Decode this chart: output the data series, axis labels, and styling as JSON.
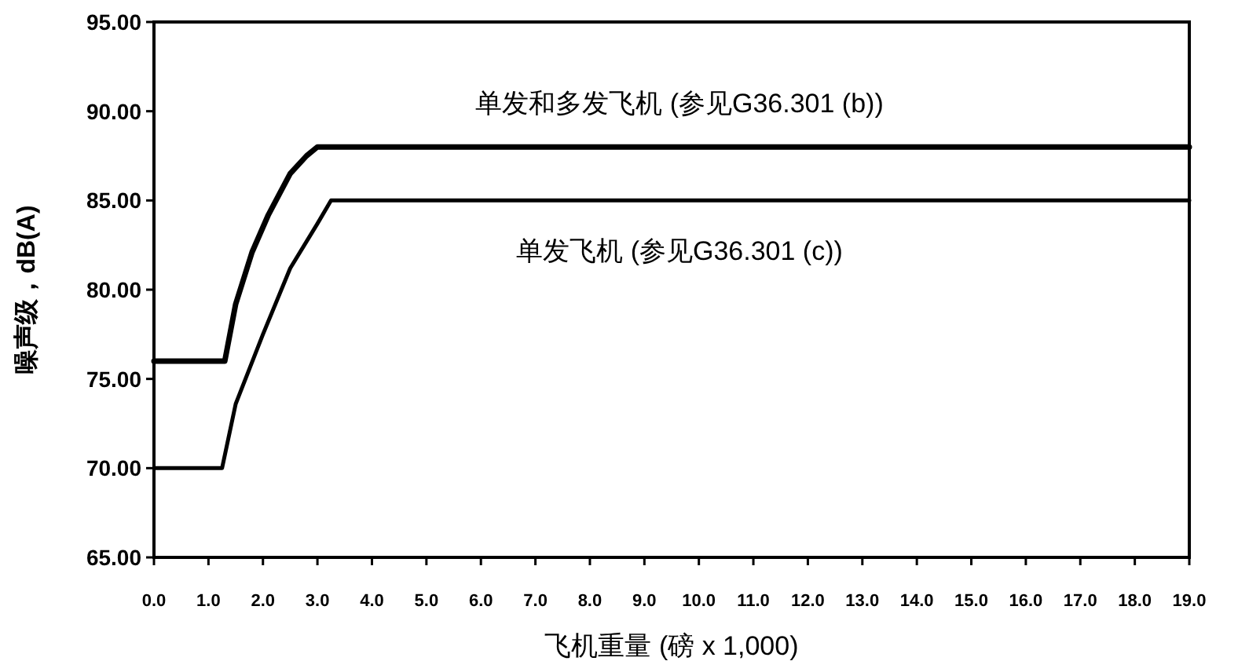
{
  "chart_data": {
    "type": "line",
    "xlabel": "飞机重量 (磅 x 1,000)",
    "ylabel": "噪声级，dB(A)",
    "xlim": [
      0,
      19
    ],
    "ylim": [
      65,
      95
    ],
    "xticks": [
      {
        "value": 0,
        "label": "0.0"
      },
      {
        "value": 1,
        "label": "1.0"
      },
      {
        "value": 2,
        "label": "2.0"
      },
      {
        "value": 3,
        "label": "3.0"
      },
      {
        "value": 4,
        "label": "4.0"
      },
      {
        "value": 5,
        "label": "5.0"
      },
      {
        "value": 6,
        "label": "6.0"
      },
      {
        "value": 7,
        "label": "7.0"
      },
      {
        "value": 8,
        "label": "8.0"
      },
      {
        "value": 9,
        "label": "9.0"
      },
      {
        "value": 10,
        "label": "10.0"
      },
      {
        "value": 11,
        "label": "11.0"
      },
      {
        "value": 12,
        "label": "12.0"
      },
      {
        "value": 13,
        "label": "13.0"
      },
      {
        "value": 14,
        "label": "14.0"
      },
      {
        "value": 15,
        "label": "15.0"
      },
      {
        "value": 16,
        "label": "16.0"
      },
      {
        "value": 17,
        "label": "17.0"
      },
      {
        "value": 18,
        "label": "18.0"
      },
      {
        "value": 19,
        "label": "19.0"
      }
    ],
    "yticks": [
      {
        "value": 65,
        "label": "65.00"
      },
      {
        "value": 70,
        "label": "70.00"
      },
      {
        "value": 75,
        "label": "75.00"
      },
      {
        "value": 80,
        "label": "80.00"
      },
      {
        "value": 85,
        "label": "85.00"
      },
      {
        "value": 90,
        "label": "90.00"
      },
      {
        "value": 95,
        "label": "95.00"
      }
    ],
    "grid": false,
    "legend": false,
    "marker": "none",
    "line_style": "solid",
    "series": [
      {
        "name": "单发和多发飞机 (参见G36.301 (b))",
        "color": "#000000",
        "x": [
          0,
          1.3,
          1.5,
          1.8,
          2.1,
          2.5,
          2.8,
          3.0,
          19
        ],
        "values": [
          76,
          76,
          79.2,
          82.1,
          84.2,
          86.5,
          87.5,
          88,
          88
        ]
      },
      {
        "name": "单发飞机 (参见G36.301 (c))",
        "color": "#000000",
        "x": [
          0,
          1.25,
          1.5,
          2.0,
          2.5,
          3.0,
          3.25,
          19
        ],
        "values": [
          70,
          70,
          73.6,
          77.5,
          81.2,
          83.7,
          85,
          85
        ]
      }
    ]
  }
}
